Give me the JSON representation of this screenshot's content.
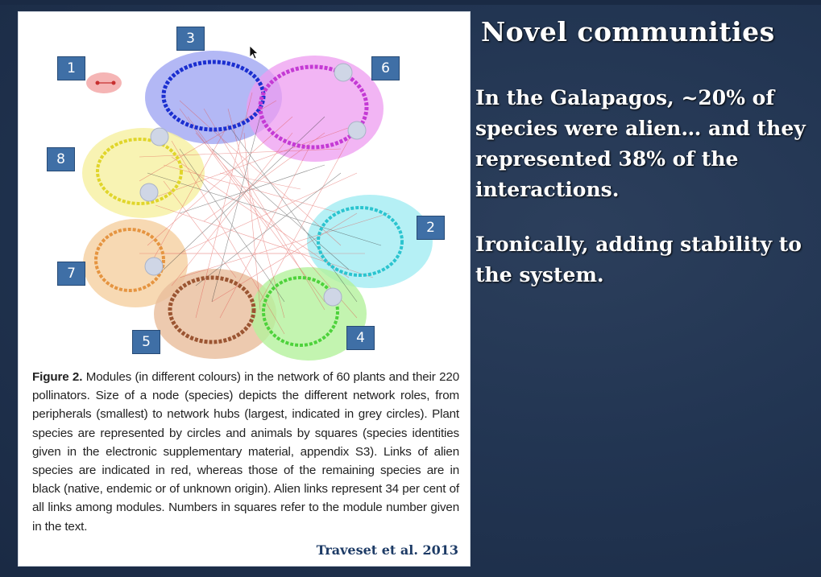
{
  "slide": {
    "title": "Novel communities",
    "paragraph1": "In the Galapagos, ~20% of species were alien… and they represented 38% of the interactions.",
    "paragraph2": "Ironically, adding stability to the system."
  },
  "figure": {
    "caption_label": "Figure 2.",
    "caption_text": " Modules (in different colours) in the network of 60 plants and their 220 pollinators. Size of a node (species) depicts the different network roles, from peripherals (smallest) to network hubs (largest, indicated in grey circles). Plant species are represented by circles and animals by squares (species identities given in the electronic supplementary material, appendix S3). Links of alien species are indicated in red, whereas those of the remaining species are in black (native, endemic or of unknown origin). Alien links represent 34 per cent of all links among modules. Numbers in squares refer to the module number given in the text.",
    "credit": "Traveset et al. 2013",
    "modules": [
      {
        "id": "1",
        "label": "1",
        "color": "#f0a0a0"
      },
      {
        "id": "2",
        "label": "2",
        "color": "#8fe6ee"
      },
      {
        "id": "3",
        "label": "3",
        "color": "#8f96f0"
      },
      {
        "id": "4",
        "label": "4",
        "color": "#a8f08e"
      },
      {
        "id": "5",
        "label": "5",
        "color": "#e3b48f"
      },
      {
        "id": "6",
        "label": "6",
        "color": "#ec92ee"
      },
      {
        "id": "7",
        "label": "7",
        "color": "#f2c896"
      },
      {
        "id": "8",
        "label": "8",
        "color": "#f5ee92"
      }
    ]
  },
  "colors": {
    "background": "#223552",
    "label_box": "#3f6fa6",
    "alien_link": "#e0524d",
    "native_link": "#333333",
    "credit_text": "#1d3b66"
  }
}
